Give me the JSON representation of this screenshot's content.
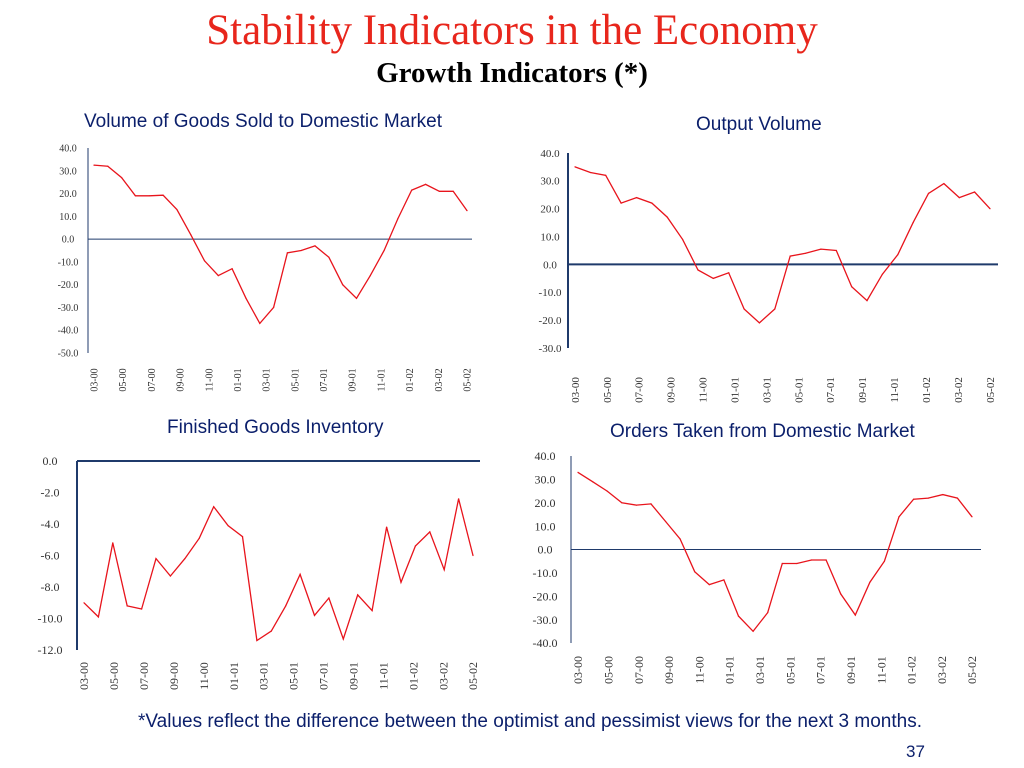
{
  "slide": {
    "title": "Stability Indicators in the Economy",
    "subtitle": "Growth Indicators (*)",
    "footnote": "*Values reflect the difference between the optimist and pessimist views for the next 3 months.",
    "page_number": "37"
  },
  "colors": {
    "title": "#e8261c",
    "series": "#e8141c",
    "axis": "#1f3a6b",
    "chart_title": "#0b1f6b"
  },
  "chart_data": [
    {
      "type": "line",
      "title": "Volume of Goods Sold to Domestic Market",
      "xlabel": "",
      "ylabel": "",
      "ylim": [
        -50,
        40
      ],
      "yticks": [
        40,
        30,
        20,
        10,
        0,
        -10,
        -20,
        -30,
        -40,
        -50
      ],
      "x_tick_labels": [
        "03-00",
        "05-00",
        "07-00",
        "09-00",
        "11-00",
        "01-01",
        "03-01",
        "05-01",
        "07-01",
        "09-01",
        "11-01",
        "01-02",
        "03-02",
        "05-02"
      ],
      "series": [
        {
          "values": [
            32.5,
            32,
            27,
            19,
            19,
            19.3,
            13,
            2,
            -9.5,
            -16,
            -13,
            -26,
            -37,
            -30,
            -6,
            -5,
            -3,
            -8,
            -20,
            -26,
            -16,
            -5,
            9,
            21.5,
            24,
            21,
            21,
            12.5
          ]
        }
      ]
    },
    {
      "type": "line",
      "title": "Output Volume",
      "xlabel": "",
      "ylabel": "",
      "ylim": [
        -30,
        40
      ],
      "yticks": [
        40,
        30,
        20,
        10,
        0,
        -10,
        -20,
        -30
      ],
      "x_tick_labels": [
        "03-00",
        "05-00",
        "07-00",
        "09-00",
        "11-00",
        "01-01",
        "03-01",
        "05-01",
        "07-01",
        "09-01",
        "11-01",
        "01-02",
        "03-02",
        "05-02"
      ],
      "series": [
        {
          "values": [
            35,
            33,
            32,
            22,
            24,
            22,
            17,
            9,
            -2,
            -5,
            -3,
            -16,
            -21,
            -16,
            3,
            4,
            5.5,
            5,
            -8,
            -13,
            -3.5,
            3.5,
            15,
            25.5,
            29,
            24,
            26,
            20
          ]
        }
      ]
    },
    {
      "type": "line",
      "title": "Finished Goods Inventory",
      "xlabel": "",
      "ylabel": "",
      "ylim": [
        -12,
        0
      ],
      "yticks": [
        0,
        -2,
        -4,
        -6,
        -8,
        -10,
        -12
      ],
      "x_tick_labels": [
        "03-00",
        "05-00",
        "07-00",
        "09-00",
        "11-00",
        "01-01",
        "03-01",
        "05-01",
        "07-01",
        "09-01",
        "11-01",
        "01-02",
        "03-02",
        "05-02"
      ],
      "series": [
        {
          "values": [
            -9,
            -9.9,
            -5.2,
            -9.2,
            -9.4,
            -6.2,
            -7.3,
            -6.2,
            -4.9,
            -2.9,
            -4.1,
            -4.8,
            -11.4,
            -10.8,
            -9.2,
            -7.2,
            -9.8,
            -8.7,
            -11.3,
            -8.5,
            -9.5,
            -4.2,
            -7.7,
            -5.4,
            -4.5,
            -6.9,
            -2.4,
            -6
          ]
        }
      ]
    },
    {
      "type": "line",
      "title": "Orders Taken from Domestic Market",
      "xlabel": "",
      "ylabel": "",
      "ylim": [
        -40,
        40
      ],
      "yticks": [
        40,
        30,
        20,
        10,
        0,
        -10,
        -20,
        -30,
        -40
      ],
      "x_tick_labels": [
        "03-00",
        "05-00",
        "07-00",
        "09-00",
        "11-00",
        "01-01",
        "03-01",
        "05-01",
        "07-01",
        "09-01",
        "11-01",
        "01-02",
        "03-02",
        "05-02"
      ],
      "series": [
        {
          "values": [
            33,
            29,
            25,
            20,
            19,
            19.5,
            12,
            4.5,
            -9.5,
            -15,
            -13,
            -28.5,
            -35,
            -27,
            -6,
            -6,
            -4.5,
            -4.5,
            -19,
            -28,
            -14,
            -5,
            14,
            21.5,
            22,
            23.5,
            22,
            14
          ]
        }
      ]
    }
  ]
}
